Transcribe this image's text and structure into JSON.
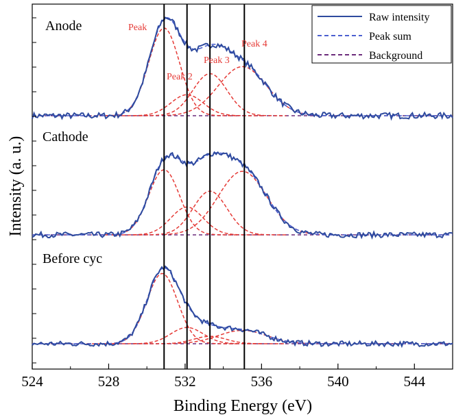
{
  "chart_data": {
    "type": "line",
    "title": "",
    "xlabel": "Binding Energy (eV)",
    "ylabel": "Intensity (a. u.)",
    "xlim": [
      524,
      546
    ],
    "x_ticks": [
      "524",
      "528",
      "532",
      "536",
      "540",
      "544"
    ],
    "y_ticks_labeled": false,
    "grid": false,
    "legend": {
      "placement": "top-right",
      "entries": [
        {
          "label": "Raw intensity",
          "color": "#2e4a9e",
          "style": "solid"
        },
        {
          "label": "Peak sum",
          "color": "#4a5fd0",
          "style": "dashed"
        },
        {
          "label": "Background",
          "color": "#6a2a7a",
          "style": "dashed"
        }
      ]
    },
    "reference_lines_x": [
      530.9,
      532.1,
      533.3,
      535.1
    ],
    "colors": {
      "raw": "#2e4a9e",
      "peak_sum": "#4a5fd0",
      "background": "#6a2a7a",
      "component": "#e53935",
      "reference": "#000000"
    },
    "panels": [
      {
        "name": "Anode",
        "baseline": 0,
        "components": [
          {
            "label": "Peak",
            "center": 530.9,
            "height": 1.0,
            "fwhm": 1.9
          },
          {
            "label": "Peak 2",
            "center": 532.1,
            "height": 0.24,
            "fwhm": 2.0
          },
          {
            "label": "Peak 3",
            "center": 533.3,
            "height": 0.48,
            "fwhm": 2.1
          },
          {
            "label": "Peak 4",
            "center": 535.0,
            "height": 0.56,
            "fwhm": 3.0
          }
        ]
      },
      {
        "name": "Cathode",
        "baseline": 0,
        "components": [
          {
            "label": "",
            "center": 530.9,
            "height": 0.82,
            "fwhm": 1.9
          },
          {
            "label": "",
            "center": 532.1,
            "height": 0.35,
            "fwhm": 2.0
          },
          {
            "label": "",
            "center": 533.3,
            "height": 0.55,
            "fwhm": 2.1
          },
          {
            "label": "",
            "center": 535.0,
            "height": 0.8,
            "fwhm": 3.0
          }
        ]
      },
      {
        "name": "Before cyc",
        "baseline": 0,
        "components": [
          {
            "label": "",
            "center": 530.8,
            "height": 0.95,
            "fwhm": 1.9
          },
          {
            "label": "",
            "center": 532.1,
            "height": 0.22,
            "fwhm": 2.0
          },
          {
            "label": "",
            "center": 533.3,
            "height": 0.1,
            "fwhm": 2.0
          },
          {
            "label": "",
            "center": 535.0,
            "height": 0.18,
            "fwhm": 3.0
          }
        ]
      }
    ]
  }
}
